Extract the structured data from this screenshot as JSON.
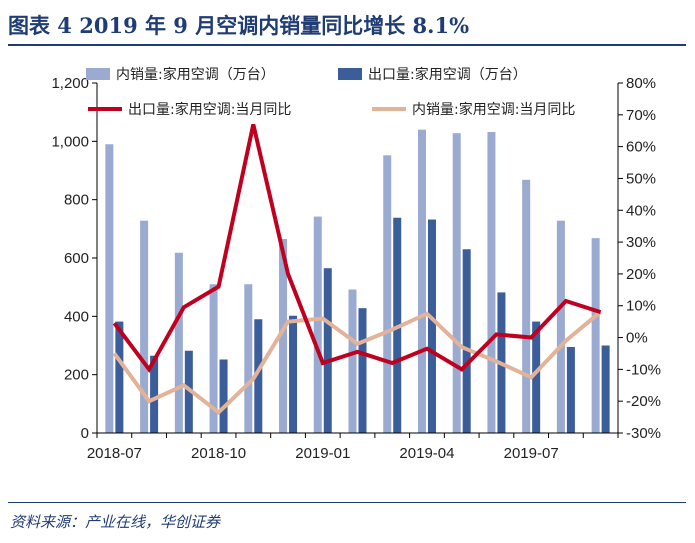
{
  "header": {
    "title": "图表 4   2019 年 9 月空调内销量同比增长 8.1%"
  },
  "footer": {
    "source": "资料来源：产业在线，华创证券"
  },
  "colors": {
    "title": "#1f3c74",
    "domestic_bar": "#9aaad0",
    "export_bar": "#3b5d9a",
    "export_line": "#c0001f",
    "domestic_line": "#e2b399"
  },
  "chart_data": {
    "type": "bar+line",
    "categories": [
      "2018-07",
      "2018-08",
      "2018-09",
      "2018-10",
      "2018-11",
      "2018-12",
      "2019-01",
      "2019-02",
      "2019-03",
      "2019-04",
      "2019-05",
      "2019-06",
      "2019-07",
      "2019-08",
      "2019-09"
    ],
    "x_tick_labels": [
      "2018-07",
      "2018-10",
      "2019-01",
      "2019-04",
      "2019-07"
    ],
    "y_left": {
      "min": 0,
      "max": 1200,
      "ticks": [
        "0",
        "200",
        "400",
        "600",
        "800",
        "1,000",
        "1,200"
      ]
    },
    "y_right": {
      "min": -30,
      "max": 80,
      "ticks": [
        "-30%",
        "-20%",
        "-10%",
        "0%",
        "10%",
        "20%",
        "30%",
        "40%",
        "50%",
        "60%",
        "70%",
        "80%"
      ]
    },
    "series": [
      {
        "name": "内销量:家用空调（万台）",
        "kind": "bar",
        "axis": "left",
        "values": [
          990,
          728,
          618,
          510,
          510,
          665,
          742,
          492,
          952,
          1040,
          1028,
          1032,
          868,
          728,
          668
        ]
      },
      {
        "name": "出口量:家用空调（万台）",
        "kind": "bar",
        "axis": "left",
        "values": [
          382,
          265,
          282,
          252,
          390,
          402,
          565,
          428,
          738,
          732,
          630,
          482,
          382,
          295,
          300
        ]
      },
      {
        "name": "出口量:家用空调:当月同比",
        "kind": "line",
        "axis": "right",
        "values": [
          4.5,
          -10,
          9.5,
          16,
          67,
          20,
          -8,
          -4.5,
          -8,
          -3.5,
          -10,
          1,
          0,
          11.5,
          8
        ]
      },
      {
        "name": "内销量:家用空调:当月同比",
        "kind": "line",
        "axis": "right",
        "values": [
          -5,
          -20,
          -15,
          -23.5,
          -13,
          5,
          6,
          -2,
          2.5,
          7.5,
          -3,
          -7.5,
          -12.5,
          -1,
          8.1
        ]
      }
    ]
  }
}
